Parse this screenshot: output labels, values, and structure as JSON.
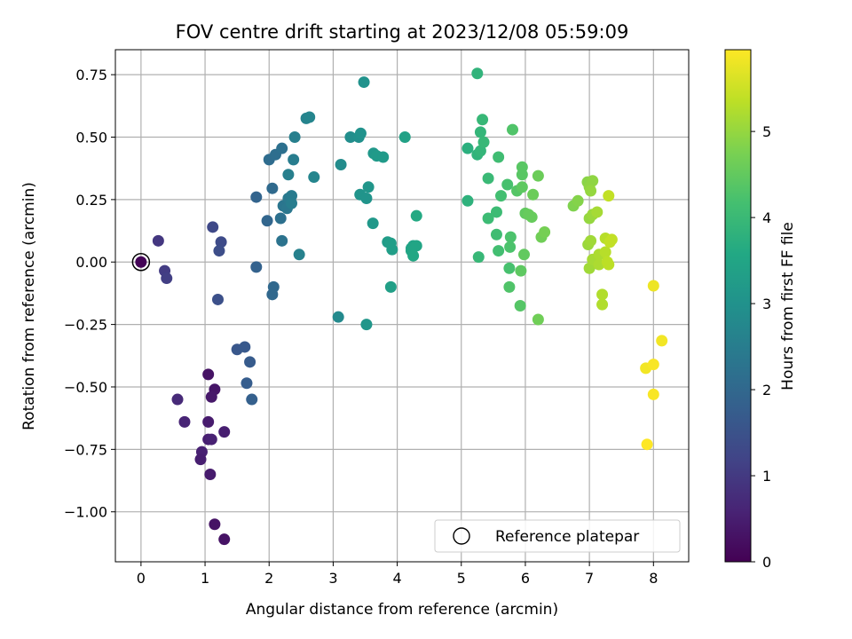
{
  "chart_data": {
    "type": "scatter",
    "title": "FOV centre drift starting at 2023/12/08 05:59:09",
    "xlabel": "Angular distance from reference (arcmin)",
    "ylabel": "Rotation from reference (arcmin)",
    "xlim": [
      -0.4,
      8.55
    ],
    "ylim": [
      -1.2,
      0.85
    ],
    "xticks": [
      0,
      1,
      2,
      3,
      4,
      5,
      6,
      7,
      8
    ],
    "xtick_labels": [
      "0",
      "1",
      "2",
      "3",
      "4",
      "5",
      "6",
      "7",
      "8"
    ],
    "yticks": [
      0.75,
      0.5,
      0.25,
      0.0,
      -0.25,
      -0.5,
      -0.75,
      -1.0
    ],
    "ytick_labels": [
      "0.75",
      "0.50",
      "0.25",
      "0.00",
      "−0.25",
      "−0.50",
      "−0.75",
      "−1.00"
    ],
    "grid": true,
    "colormap": "viridis",
    "colorbar": {
      "label": "Hours from first FF file",
      "range": [
        0,
        5.95
      ],
      "ticks": [
        0,
        1,
        2,
        3,
        4,
        5
      ],
      "tick_labels": [
        "0",
        "1",
        "2",
        "3",
        "4",
        "5"
      ]
    },
    "legend": {
      "position": "lower-right",
      "entries": [
        {
          "label": "Reference platepar",
          "marker": "open-circle"
        }
      ]
    },
    "reference_point": {
      "x": 0,
      "y": 0
    },
    "series": [
      {
        "marker_color_by": "hours",
        "points": [
          {
            "x": 0.0,
            "y": 0.0,
            "h": 0.05
          },
          {
            "x": 1.05,
            "y": -0.45,
            "h": 0.3
          },
          {
            "x": 1.15,
            "y": -0.51,
            "h": 0.35
          },
          {
            "x": 1.1,
            "y": -0.54,
            "h": 0.4
          },
          {
            "x": 1.05,
            "y": -0.64,
            "h": 0.45
          },
          {
            "x": 1.3,
            "y": -0.68,
            "h": 0.5
          },
          {
            "x": 1.05,
            "y": -0.71,
            "h": 0.5
          },
          {
            "x": 1.1,
            "y": -0.71,
            "h": 0.55
          },
          {
            "x": 0.95,
            "y": -0.76,
            "h": 0.55
          },
          {
            "x": 0.93,
            "y": -0.79,
            "h": 0.5
          },
          {
            "x": 1.08,
            "y": -0.85,
            "h": 0.45
          },
          {
            "x": 1.15,
            "y": -1.05,
            "h": 0.3
          },
          {
            "x": 1.3,
            "y": -1.11,
            "h": 0.3
          },
          {
            "x": 0.68,
            "y": -0.64,
            "h": 0.6
          },
          {
            "x": 0.57,
            "y": -0.55,
            "h": 0.7
          },
          {
            "x": 0.27,
            "y": 0.085,
            "h": 0.95
          },
          {
            "x": 0.37,
            "y": -0.035,
            "h": 1.05
          },
          {
            "x": 0.4,
            "y": -0.065,
            "h": 1.1
          },
          {
            "x": 1.12,
            "y": 0.14,
            "h": 1.3
          },
          {
            "x": 1.25,
            "y": 0.08,
            "h": 1.35
          },
          {
            "x": 1.22,
            "y": 0.045,
            "h": 1.4
          },
          {
            "x": 1.2,
            "y": -0.15,
            "h": 1.45
          },
          {
            "x": 1.5,
            "y": -0.35,
            "h": 1.6
          },
          {
            "x": 1.62,
            "y": -0.34,
            "h": 1.65
          },
          {
            "x": 1.7,
            "y": -0.4,
            "h": 1.7
          },
          {
            "x": 1.65,
            "y": -0.485,
            "h": 1.75
          },
          {
            "x": 1.73,
            "y": -0.55,
            "h": 1.8
          },
          {
            "x": 1.8,
            "y": -0.02,
            "h": 1.85
          },
          {
            "x": 1.8,
            "y": 0.26,
            "h": 1.9
          },
          {
            "x": 1.97,
            "y": 0.165,
            "h": 1.95
          },
          {
            "x": 2.05,
            "y": -0.13,
            "h": 2.0
          },
          {
            "x": 2.07,
            "y": -0.1,
            "h": 2.0
          },
          {
            "x": 2.05,
            "y": 0.295,
            "h": 2.05
          },
          {
            "x": 2.0,
            "y": 0.41,
            "h": 2.1
          },
          {
            "x": 2.1,
            "y": 0.43,
            "h": 2.15
          },
          {
            "x": 2.2,
            "y": 0.455,
            "h": 2.2
          },
          {
            "x": 2.18,
            "y": 0.175,
            "h": 2.2
          },
          {
            "x": 2.2,
            "y": 0.085,
            "h": 2.25
          },
          {
            "x": 2.22,
            "y": 0.225,
            "h": 2.3
          },
          {
            "x": 2.28,
            "y": 0.215,
            "h": 2.35
          },
          {
            "x": 2.3,
            "y": 0.255,
            "h": 2.4
          },
          {
            "x": 2.35,
            "y": 0.265,
            "h": 2.45
          },
          {
            "x": 2.35,
            "y": 0.235,
            "h": 2.5
          },
          {
            "x": 2.38,
            "y": 0.41,
            "h": 2.5
          },
          {
            "x": 2.3,
            "y": 0.35,
            "h": 2.55
          },
          {
            "x": 2.4,
            "y": 0.5,
            "h": 2.55
          },
          {
            "x": 2.47,
            "y": 0.03,
            "h": 2.6
          },
          {
            "x": 2.58,
            "y": 0.575,
            "h": 2.65
          },
          {
            "x": 2.63,
            "y": 0.58,
            "h": 2.7
          },
          {
            "x": 2.7,
            "y": 0.34,
            "h": 2.7
          },
          {
            "x": 3.08,
            "y": -0.22,
            "h": 2.8
          },
          {
            "x": 3.12,
            "y": 0.39,
            "h": 2.85
          },
          {
            "x": 3.27,
            "y": 0.5,
            "h": 2.9
          },
          {
            "x": 3.4,
            "y": 0.5,
            "h": 2.95
          },
          {
            "x": 3.43,
            "y": 0.515,
            "h": 3.0
          },
          {
            "x": 3.48,
            "y": 0.72,
            "h": 3.0
          },
          {
            "x": 3.42,
            "y": 0.27,
            "h": 3.05
          },
          {
            "x": 3.52,
            "y": 0.255,
            "h": 3.05
          },
          {
            "x": 3.55,
            "y": 0.3,
            "h": 3.1
          },
          {
            "x": 3.52,
            "y": -0.25,
            "h": 3.1
          },
          {
            "x": 3.62,
            "y": 0.155,
            "h": 3.15
          },
          {
            "x": 3.63,
            "y": 0.435,
            "h": 3.15
          },
          {
            "x": 3.68,
            "y": 0.425,
            "h": 3.2
          },
          {
            "x": 3.78,
            "y": 0.42,
            "h": 3.2
          },
          {
            "x": 3.85,
            "y": 0.08,
            "h": 3.25
          },
          {
            "x": 3.9,
            "y": 0.075,
            "h": 3.3
          },
          {
            "x": 3.92,
            "y": 0.05,
            "h": 3.3
          },
          {
            "x": 3.9,
            "y": -0.1,
            "h": 3.35
          },
          {
            "x": 4.12,
            "y": 0.5,
            "h": 3.4
          },
          {
            "x": 4.22,
            "y": 0.055,
            "h": 3.45
          },
          {
            "x": 4.25,
            "y": 0.065,
            "h": 3.45
          },
          {
            "x": 4.3,
            "y": 0.065,
            "h": 3.5
          },
          {
            "x": 4.22,
            "y": 0.045,
            "h": 3.5
          },
          {
            "x": 4.25,
            "y": 0.025,
            "h": 3.55
          },
          {
            "x": 4.3,
            "y": 0.185,
            "h": 3.6
          },
          {
            "x": 5.1,
            "y": 0.455,
            "h": 3.75
          },
          {
            "x": 5.1,
            "y": 0.245,
            "h": 3.8
          },
          {
            "x": 5.25,
            "y": 0.755,
            "h": 3.85
          },
          {
            "x": 5.25,
            "y": 0.43,
            "h": 3.85
          },
          {
            "x": 5.3,
            "y": 0.445,
            "h": 3.9
          },
          {
            "x": 5.3,
            "y": 0.52,
            "h": 3.9
          },
          {
            "x": 5.33,
            "y": 0.57,
            "h": 3.95
          },
          {
            "x": 5.35,
            "y": 0.48,
            "h": 3.95
          },
          {
            "x": 5.27,
            "y": 0.02,
            "h": 3.95
          },
          {
            "x": 5.42,
            "y": 0.335,
            "h": 4.0
          },
          {
            "x": 5.42,
            "y": 0.175,
            "h": 4.05
          },
          {
            "x": 5.55,
            "y": 0.2,
            "h": 4.05
          },
          {
            "x": 5.55,
            "y": 0.11,
            "h": 4.1
          },
          {
            "x": 5.58,
            "y": 0.42,
            "h": 4.1
          },
          {
            "x": 5.58,
            "y": 0.045,
            "h": 4.15
          },
          {
            "x": 5.62,
            "y": 0.265,
            "h": 4.15
          },
          {
            "x": 5.72,
            "y": 0.31,
            "h": 4.2
          },
          {
            "x": 5.75,
            "y": -0.025,
            "h": 4.2
          },
          {
            "x": 5.76,
            "y": 0.06,
            "h": 4.25
          },
          {
            "x": 5.77,
            "y": 0.1,
            "h": 4.25
          },
          {
            "x": 5.75,
            "y": -0.1,
            "h": 4.3
          },
          {
            "x": 5.8,
            "y": 0.53,
            "h": 4.3
          },
          {
            "x": 5.87,
            "y": 0.285,
            "h": 4.35
          },
          {
            "x": 5.92,
            "y": -0.175,
            "h": 4.35
          },
          {
            "x": 5.95,
            "y": 0.38,
            "h": 4.4
          },
          {
            "x": 5.95,
            "y": 0.35,
            "h": 4.4
          },
          {
            "x": 5.95,
            "y": 0.3,
            "h": 4.45
          },
          {
            "x": 5.93,
            "y": -0.035,
            "h": 4.45
          },
          {
            "x": 5.98,
            "y": 0.03,
            "h": 4.5
          },
          {
            "x": 6.0,
            "y": 0.195,
            "h": 4.5
          },
          {
            "x": 6.05,
            "y": 0.19,
            "h": 4.55
          },
          {
            "x": 6.1,
            "y": 0.18,
            "h": 4.55
          },
          {
            "x": 6.12,
            "y": 0.27,
            "h": 4.6
          },
          {
            "x": 6.2,
            "y": 0.345,
            "h": 4.6
          },
          {
            "x": 6.2,
            "y": -0.23,
            "h": 4.65
          },
          {
            "x": 6.25,
            "y": 0.1,
            "h": 4.65
          },
          {
            "x": 6.3,
            "y": 0.12,
            "h": 4.7
          },
          {
            "x": 6.75,
            "y": 0.225,
            "h": 4.8
          },
          {
            "x": 6.82,
            "y": 0.245,
            "h": 4.85
          },
          {
            "x": 6.97,
            "y": 0.32,
            "h": 4.9
          },
          {
            "x": 7.05,
            "y": 0.325,
            "h": 4.95
          },
          {
            "x": 7.0,
            "y": 0.3,
            "h": 4.95
          },
          {
            "x": 7.02,
            "y": 0.285,
            "h": 5.0
          },
          {
            "x": 7.0,
            "y": 0.175,
            "h": 5.0
          },
          {
            "x": 7.05,
            "y": 0.19,
            "h": 5.05
          },
          {
            "x": 6.98,
            "y": 0.07,
            "h": 5.05
          },
          {
            "x": 7.02,
            "y": 0.085,
            "h": 5.1
          },
          {
            "x": 7.0,
            "y": -0.025,
            "h": 5.1
          },
          {
            "x": 7.05,
            "y": 0.01,
            "h": 5.15
          },
          {
            "x": 7.12,
            "y": 0.2,
            "h": 5.15
          },
          {
            "x": 7.15,
            "y": 0.03,
            "h": 5.2
          },
          {
            "x": 7.15,
            "y": -0.01,
            "h": 5.2
          },
          {
            "x": 7.2,
            "y": -0.13,
            "h": 5.25
          },
          {
            "x": 7.2,
            "y": -0.17,
            "h": 5.25
          },
          {
            "x": 7.25,
            "y": 0.095,
            "h": 5.3
          },
          {
            "x": 7.25,
            "y": 0.04,
            "h": 5.3
          },
          {
            "x": 7.28,
            "y": 0.0,
            "h": 5.35
          },
          {
            "x": 7.3,
            "y": -0.01,
            "h": 5.35
          },
          {
            "x": 7.32,
            "y": 0.08,
            "h": 5.4
          },
          {
            "x": 7.35,
            "y": 0.09,
            "h": 5.4
          },
          {
            "x": 7.3,
            "y": 0.265,
            "h": 5.4
          },
          {
            "x": 8.0,
            "y": -0.095,
            "h": 5.8
          },
          {
            "x": 8.13,
            "y": -0.315,
            "h": 5.85
          },
          {
            "x": 7.88,
            "y": -0.425,
            "h": 5.85
          },
          {
            "x": 8.0,
            "y": -0.41,
            "h": 5.9
          },
          {
            "x": 8.0,
            "y": -0.53,
            "h": 5.9
          },
          {
            "x": 7.9,
            "y": -0.73,
            "h": 5.95
          }
        ]
      }
    ]
  }
}
